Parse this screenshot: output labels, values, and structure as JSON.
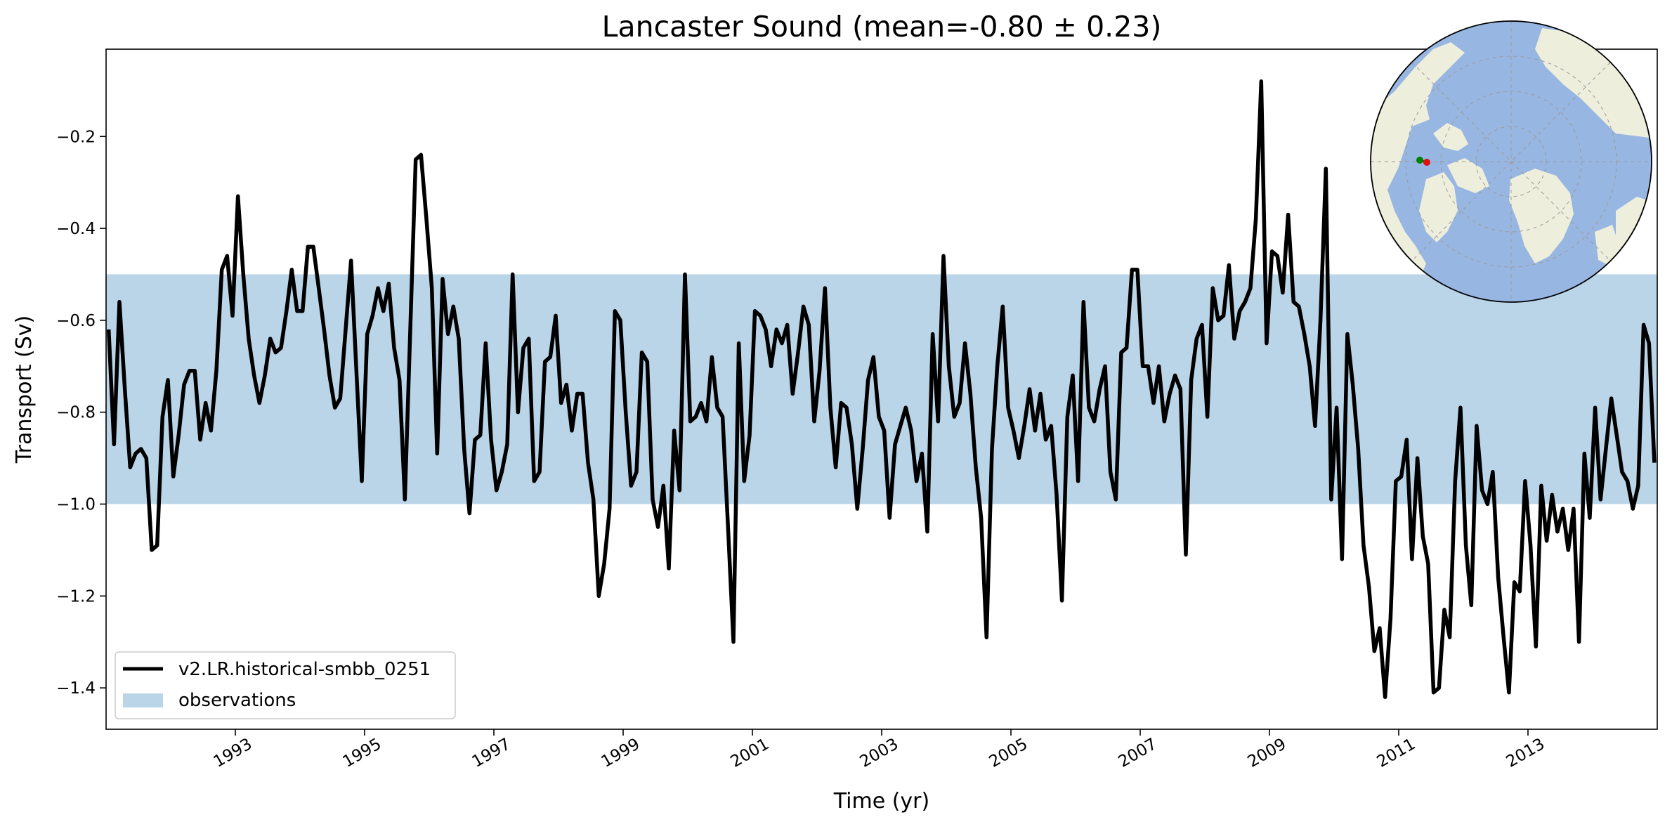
{
  "chart_data": {
    "type": "line",
    "title": "Lancaster Sound (mean=-0.80 ± 0.23)",
    "xlabel": "Time (yr)",
    "ylabel": "Transport (Sv)",
    "xlim": [
      1991.0,
      2015.0
    ],
    "ylim": [
      -1.49,
      -0.01
    ],
    "x_ticks": [
      1993,
      1995,
      1997,
      1999,
      2001,
      2003,
      2005,
      2007,
      2009,
      2011,
      2013
    ],
    "x_tick_labels": [
      "1993",
      "1995",
      "1997",
      "1999",
      "2001",
      "2003",
      "2005",
      "2007",
      "2009",
      "2011",
      "2013"
    ],
    "y_ticks": [
      -1.4,
      -1.2,
      -1.0,
      -0.8,
      -0.6,
      -0.4,
      -0.2
    ],
    "y_tick_labels": [
      "−1.4",
      "−1.2",
      "−1.0",
      "−0.8",
      "−0.6",
      "−0.4",
      "−0.2"
    ],
    "grid": false,
    "legend_position": "lower-left",
    "observations_band": {
      "name": "observations",
      "ymin": -1.0,
      "ymax": -0.5,
      "color": "#bad5e8"
    },
    "series": [
      {
        "name": "v2.LR.historical-smbb_0251",
        "color": "#000000",
        "x_start": 1991.04,
        "x_step": 0.08333,
        "values": [
          -0.62,
          -0.87,
          -0.56,
          -0.75,
          -0.92,
          -0.89,
          -0.88,
          -0.9,
          -1.1,
          -1.09,
          -0.81,
          -0.73,
          -0.94,
          -0.85,
          -0.74,
          -0.71,
          -0.71,
          -0.86,
          -0.78,
          -0.84,
          -0.71,
          -0.49,
          -0.46,
          -0.59,
          -0.33,
          -0.5,
          -0.64,
          -0.72,
          -0.78,
          -0.72,
          -0.64,
          -0.67,
          -0.66,
          -0.58,
          -0.49,
          -0.58,
          -0.58,
          -0.44,
          -0.44,
          -0.53,
          -0.62,
          -0.72,
          -0.79,
          -0.77,
          -0.62,
          -0.47,
          -0.71,
          -0.95,
          -0.63,
          -0.59,
          -0.53,
          -0.58,
          -0.52,
          -0.66,
          -0.73,
          -0.99,
          -0.62,
          -0.25,
          -0.24,
          -0.38,
          -0.53,
          -0.89,
          -0.51,
          -0.63,
          -0.57,
          -0.64,
          -0.88,
          -1.02,
          -0.86,
          -0.85,
          -0.65,
          -0.86,
          -0.97,
          -0.93,
          -0.87,
          -0.5,
          -0.8,
          -0.66,
          -0.64,
          -0.95,
          -0.93,
          -0.69,
          -0.68,
          -0.59,
          -0.78,
          -0.74,
          -0.84,
          -0.76,
          -0.76,
          -0.91,
          -0.99,
          -1.2,
          -1.13,
          -1.01,
          -0.58,
          -0.6,
          -0.8,
          -0.96,
          -0.93,
          -0.67,
          -0.69,
          -0.99,
          -1.05,
          -0.96,
          -1.14,
          -0.84,
          -0.97,
          -0.5,
          -0.82,
          -0.81,
          -0.78,
          -0.82,
          -0.68,
          -0.79,
          -0.81,
          -1.05,
          -1.3,
          -0.65,
          -0.95,
          -0.85,
          -0.58,
          -0.59,
          -0.62,
          -0.7,
          -0.62,
          -0.65,
          -0.61,
          -0.76,
          -0.67,
          -0.57,
          -0.61,
          -0.82,
          -0.71,
          -0.53,
          -0.79,
          -0.92,
          -0.78,
          -0.79,
          -0.87,
          -1.01,
          -0.88,
          -0.73,
          -0.68,
          -0.81,
          -0.84,
          -1.03,
          -0.87,
          -0.83,
          -0.79,
          -0.84,
          -0.95,
          -0.89,
          -1.06,
          -0.63,
          -0.82,
          -0.46,
          -0.7,
          -0.81,
          -0.78,
          -0.65,
          -0.76,
          -0.92,
          -1.03,
          -1.29,
          -0.88,
          -0.7,
          -0.57,
          -0.79,
          -0.84,
          -0.9,
          -0.83,
          -0.75,
          -0.84,
          -0.76,
          -0.86,
          -0.83,
          -0.98,
          -1.21,
          -0.81,
          -0.72,
          -0.95,
          -0.56,
          -0.79,
          -0.82,
          -0.75,
          -0.7,
          -0.93,
          -0.99,
          -0.67,
          -0.66,
          -0.49,
          -0.49,
          -0.7,
          -0.7,
          -0.78,
          -0.7,
          -0.82,
          -0.76,
          -0.72,
          -0.75,
          -1.11,
          -0.73,
          -0.64,
          -0.61,
          -0.81,
          -0.53,
          -0.6,
          -0.59,
          -0.48,
          -0.64,
          -0.58,
          -0.56,
          -0.53,
          -0.38,
          -0.08,
          -0.65,
          -0.45,
          -0.46,
          -0.54,
          -0.37,
          -0.56,
          -0.57,
          -0.63,
          -0.7,
          -0.83,
          -0.6,
          -0.27,
          -0.99,
          -0.79,
          -1.12,
          -0.63,
          -0.74,
          -0.88,
          -1.09,
          -1.18,
          -1.32,
          -1.27,
          -1.42,
          -1.25,
          -0.95,
          -0.94,
          -0.86,
          -1.12,
          -0.9,
          -1.07,
          -1.13,
          -1.41,
          -1.4,
          -1.23,
          -1.29,
          -0.95,
          -0.79,
          -1.09,
          -1.22,
          -0.83,
          -0.97,
          -1.0,
          -0.93,
          -1.16,
          -1.29,
          -1.41,
          -1.17,
          -1.19,
          -0.95,
          -1.09,
          -1.31,
          -0.96,
          -1.08,
          -0.98,
          -1.06,
          -1.01,
          -1.1,
          -1.01,
          -1.3,
          -0.89,
          -1.03,
          -0.79,
          -0.99,
          -0.88,
          -0.77,
          -0.85,
          -0.93,
          -0.95,
          -1.01,
          -0.96,
          -0.61,
          -0.65,
          -0.91
        ]
      }
    ],
    "legend": [
      {
        "label": "v2.LR.historical-smbb_0251",
        "kind": "line",
        "color": "#000000"
      },
      {
        "label": "observations",
        "kind": "patch",
        "color": "#bad5e8"
      }
    ],
    "inset_map": {
      "projection": "north-polar-stereographic",
      "land_color": "#eeeedd",
      "ocean_color": "#98b6e2",
      "markers": [
        {
          "color": "#008000",
          "name": "green-marker"
        },
        {
          "color": "#e01010",
          "name": "red-marker"
        }
      ]
    }
  }
}
